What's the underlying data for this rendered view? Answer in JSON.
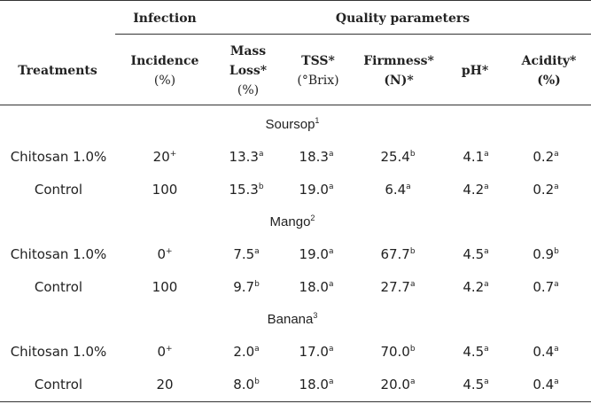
{
  "header": {
    "groups": [
      "Infection",
      "Quality parameters"
    ],
    "columns": [
      [
        "Treatments"
      ],
      [
        "Incidence",
        "(%)"
      ],
      [
        "Mass",
        "Loss*",
        "(%)"
      ],
      [
        "TSS*",
        "(°Brix)"
      ],
      [
        "Firmness*",
        "(N)*"
      ],
      [
        "pH*"
      ],
      [
        "Acidity*",
        "(%)"
      ]
    ]
  },
  "sections": [
    {
      "name": "Soursop",
      "sup": "1",
      "rows": [
        {
          "treatment": "Chitosan 1.0%",
          "cells": [
            [
              "20",
              "+"
            ],
            [
              "13.3",
              "a"
            ],
            [
              "18.3",
              "a"
            ],
            [
              "25.4",
              "b"
            ],
            [
              "4.1",
              "a"
            ],
            [
              "0.2",
              "a"
            ]
          ]
        },
        {
          "treatment": "Control",
          "cells": [
            [
              "100",
              ""
            ],
            [
              "15.3",
              "b"
            ],
            [
              "19.0",
              "a"
            ],
            [
              "6.4",
              "a"
            ],
            [
              "4.2",
              "a"
            ],
            [
              "0.2",
              "a"
            ]
          ]
        }
      ]
    },
    {
      "name": "Mango",
      "sup": "2",
      "rows": [
        {
          "treatment": "Chitosan 1.0%",
          "cells": [
            [
              "0",
              "+"
            ],
            [
              "7.5",
              "a"
            ],
            [
              "19.0",
              "a"
            ],
            [
              "67.7",
              "b"
            ],
            [
              "4.5",
              "a"
            ],
            [
              "0.9",
              "b"
            ]
          ]
        },
        {
          "treatment": "Control",
          "cells": [
            [
              "100",
              ""
            ],
            [
              "9.7",
              "b"
            ],
            [
              "18.0",
              "a"
            ],
            [
              "27.7",
              "a"
            ],
            [
              "4.2",
              "a"
            ],
            [
              "0.7",
              "a"
            ]
          ]
        }
      ]
    },
    {
      "name": "Banana",
      "sup": "3",
      "rows": [
        {
          "treatment": "Chitosan 1.0%",
          "cells": [
            [
              "0",
              "+"
            ],
            [
              "2.0",
              "a"
            ],
            [
              "17.0",
              "a"
            ],
            [
              "70.0",
              "b"
            ],
            [
              "4.5",
              "a"
            ],
            [
              "0.4",
              "a"
            ]
          ]
        },
        {
          "treatment": "Control",
          "cells": [
            [
              "20",
              ""
            ],
            [
              "8.0",
              "b"
            ],
            [
              "18.0",
              "a"
            ],
            [
              "20.0",
              "a"
            ],
            [
              "4.5",
              "a"
            ],
            [
              "0.4",
              "a"
            ]
          ]
        }
      ]
    }
  ]
}
